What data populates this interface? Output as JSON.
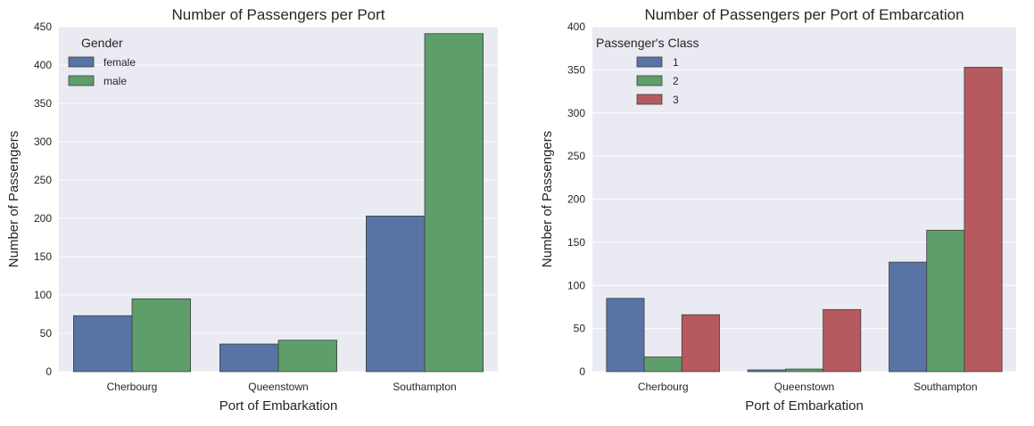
{
  "style": {
    "panel_background": "#eaeaf2",
    "grid_color": "#ffffff",
    "edge_color": "#3f3f3f"
  },
  "chart_data": [
    {
      "type": "bar",
      "title": "Number of Passengers per Port",
      "xlabel": "Port of Embarkation",
      "ylabel": "Number of Passengers",
      "categories": [
        "Cherbourg",
        "Queenstown",
        "Southampton"
      ],
      "ylim": [
        0,
        450
      ],
      "yticks": [
        0,
        50,
        100,
        150,
        200,
        250,
        300,
        350,
        400,
        450
      ],
      "grid": true,
      "legend": {
        "title": "Gender",
        "placement": "top-left"
      },
      "series": [
        {
          "name": "female",
          "color": "#5874a5",
          "values": [
            73,
            36,
            203
          ]
        },
        {
          "name": "male",
          "color": "#5e9e6b",
          "values": [
            95,
            41,
            441
          ]
        }
      ]
    },
    {
      "type": "bar",
      "title": "Number of Passengers per Port of Embarcation",
      "xlabel": "Port of Embarkation",
      "ylabel": "Number of Passengers",
      "categories": [
        "Cherbourg",
        "Queenstown",
        "Southampton"
      ],
      "ylim": [
        0,
        400
      ],
      "yticks": [
        0,
        50,
        100,
        150,
        200,
        250,
        300,
        350,
        400
      ],
      "grid": true,
      "legend": {
        "title": "Passenger's Class",
        "placement": "top-left"
      },
      "series": [
        {
          "name": "1",
          "color": "#5874a5",
          "values": [
            85,
            2,
            127
          ]
        },
        {
          "name": "2",
          "color": "#5e9e6b",
          "values": [
            17,
            3,
            164
          ]
        },
        {
          "name": "3",
          "color": "#b65a5f",
          "values": [
            66,
            72,
            353
          ]
        }
      ]
    }
  ]
}
